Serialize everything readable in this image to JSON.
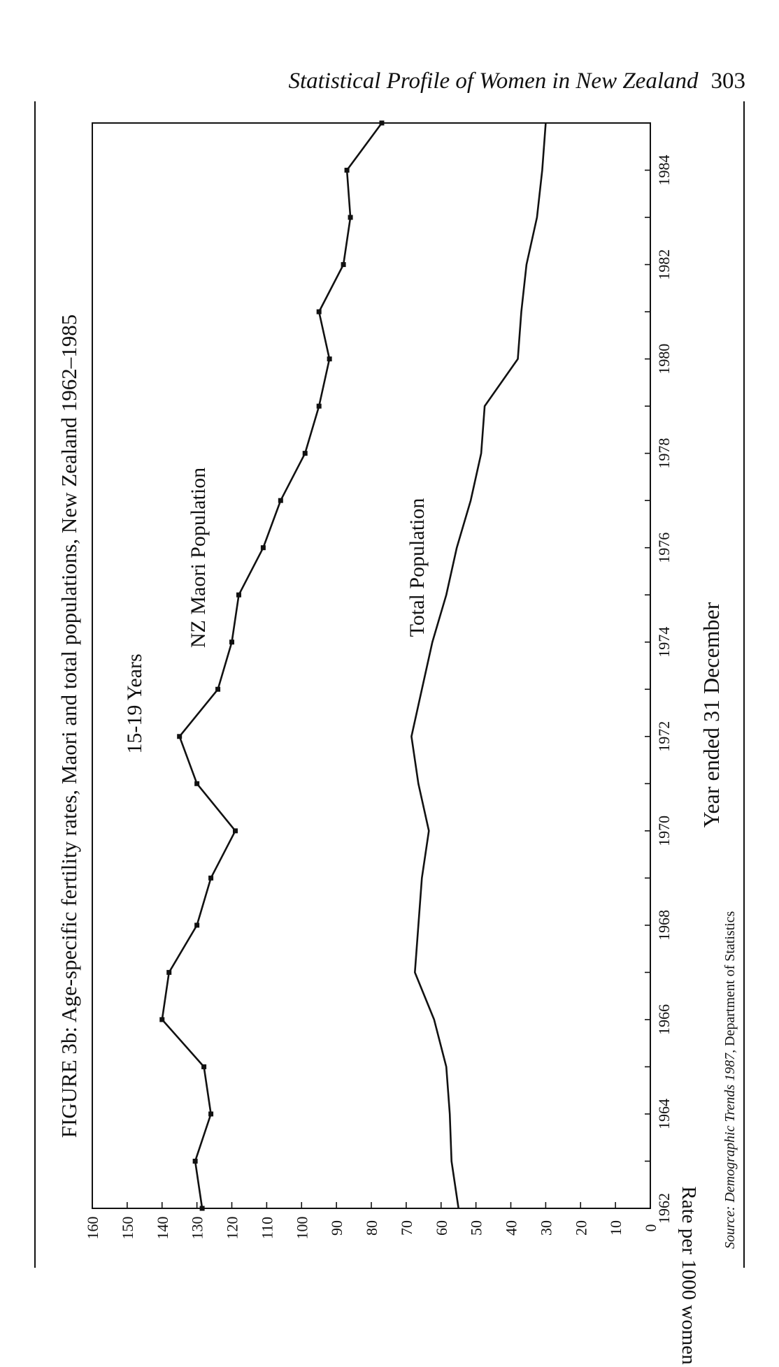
{
  "page": {
    "running_title": "Statistical Profile of Women in New Zealand",
    "page_number": "303"
  },
  "chart_data": {
    "type": "line",
    "title": "FIGURE 3b: Age-specific fertility rates, Maori and total populations, New Zealand 1962–1985",
    "subtitle": "15-19 Years",
    "xlabel": "Year ended 31 December",
    "ylabel": "Rate per 1000 women",
    "source": {
      "label": "Source:",
      "publication": "Demographic Trends 1987,",
      "publisher": "Department of Statistics"
    },
    "xlim": [
      1962,
      1985
    ],
    "ylim": [
      0,
      160
    ],
    "x_ticks": [
      1962,
      1964,
      1966,
      1968,
      1970,
      1972,
      1974,
      1976,
      1978,
      1980,
      1982,
      1984
    ],
    "y_ticks": [
      0,
      10,
      20,
      30,
      40,
      50,
      60,
      70,
      80,
      90,
      100,
      110,
      120,
      130,
      140,
      150,
      160
    ],
    "grid": false,
    "x": [
      1962,
      1963,
      1964,
      1965,
      1966,
      1967,
      1968,
      1969,
      1970,
      1971,
      1972,
      1973,
      1974,
      1975,
      1976,
      1977,
      1978,
      1979,
      1980,
      1981,
      1982,
      1983,
      1984,
      1985
    ],
    "series": [
      {
        "name": "NZ Maori Population",
        "markers": true,
        "values": [
          128.5,
          130.5,
          126,
          128,
          140,
          138,
          130,
          126,
          119,
          130,
          135,
          124,
          120,
          118,
          111,
          106,
          99,
          95,
          92,
          95,
          88,
          86,
          87,
          77
        ]
      },
      {
        "name": "Total Population",
        "markers": false,
        "values": [
          55,
          57,
          57.5,
          58.5,
          62,
          67.5,
          66.5,
          65.5,
          63.5,
          66.5,
          68.5,
          65.5,
          62.5,
          58.5,
          55.5,
          51.5,
          48.5,
          47.5,
          38,
          37,
          35.5,
          32.5,
          31,
          30
        ]
      }
    ]
  }
}
